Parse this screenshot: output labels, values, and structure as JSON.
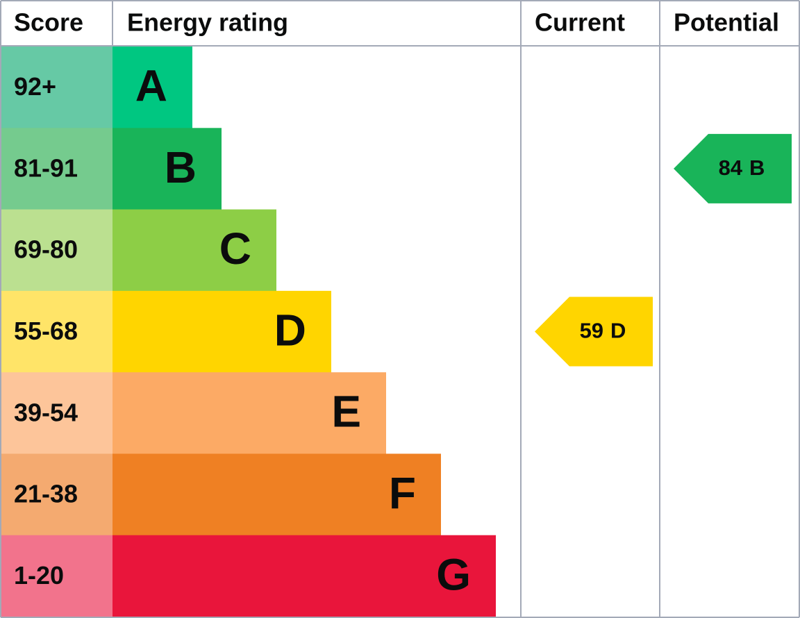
{
  "header": {
    "score": "Score",
    "rating": "Energy rating",
    "current": "Current",
    "potential": "Potential"
  },
  "rows": [
    {
      "score": "92+",
      "letter": "A",
      "color": "#00c781",
      "score_color": "#66c9a5"
    },
    {
      "score": "81-91",
      "letter": "B",
      "color": "#19b459",
      "score_color": "#75cb8e"
    },
    {
      "score": "69-80",
      "letter": "C",
      "color": "#8dce46",
      "score_color": "#bbe090"
    },
    {
      "score": "55-68",
      "letter": "D",
      "color": "#ffd500",
      "score_color": "#ffe468"
    },
    {
      "score": "39-54",
      "letter": "E",
      "color": "#fcaa65",
      "score_color": "#fdc59a"
    },
    {
      "score": "21-38",
      "letter": "F",
      "color": "#ef8023",
      "score_color": "#f4aa70"
    },
    {
      "score": "1-20",
      "letter": "G",
      "color": "#e9153b",
      "score_color": "#f2738c"
    }
  ],
  "current": {
    "score": 59,
    "rating": "D"
  },
  "potential": {
    "score": 84,
    "rating": "B"
  }
}
